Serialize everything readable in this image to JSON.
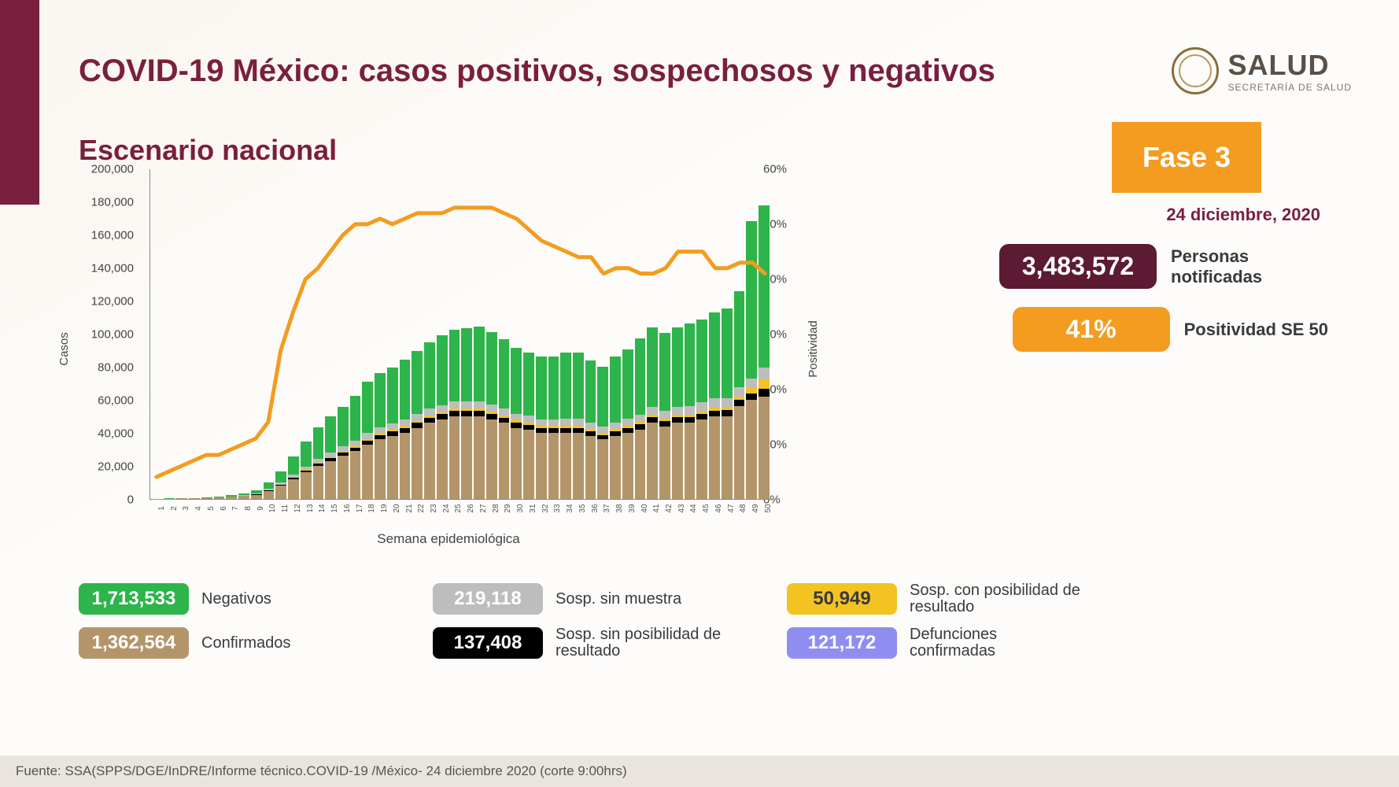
{
  "header": {
    "title": "COVID-19 México: casos positivos, sospechosos y negativos",
    "logo_main": "SALUD",
    "logo_sub": "SECRETARÍA DE SALUD"
  },
  "subtitle": "Escenario nacional",
  "phase": {
    "label": "Fase 3",
    "date": "24 diciembre, 2020"
  },
  "stats": {
    "notified": {
      "value": "3,483,572",
      "label": "Personas notificadas",
      "color": "#5c1a33"
    },
    "positivity": {
      "value": "41%",
      "label": "Positividad SE 50",
      "color": "#f39c1f"
    }
  },
  "legend": [
    {
      "value": "1,713,533",
      "label": "Negativos",
      "bg": "#2db44a",
      "fg": "#ffffff"
    },
    {
      "value": "219,118",
      "label": "Sosp. sin muestra",
      "bg": "#bdbdbd",
      "fg": "#ffffff"
    },
    {
      "value": "50,949",
      "label": "Sosp. con posibilidad de resultado",
      "bg": "#f3c321",
      "fg": "#3a3a3a"
    },
    {
      "value": "1,362,564",
      "label": "Confirmados",
      "bg": "#b4956a",
      "fg": "#ffffff"
    },
    {
      "value": "137,408",
      "label": "Sosp. sin posibilidad de resultado",
      "bg": "#000000",
      "fg": "#ffffff"
    },
    {
      "value": "121,172",
      "label": "Defunciones confirmadas",
      "bg": "#8f8ef0",
      "fg": "#ffffff"
    }
  ],
  "footer": "Fuente: SSA(SPPS/DGE/InDRE/Informe técnico.COVID-19 /México- 24 diciembre 2020 (corte 9:00hrs)",
  "chart": {
    "type": "stacked-bar + line",
    "x_label": "Semana epidemiológica",
    "y_left_label": "Casos",
    "y_right_label": "Positividad",
    "y_left": {
      "min": 0,
      "max": 200000,
      "step": 20000
    },
    "y_right": {
      "min": 0,
      "max": 60,
      "step": 10,
      "suffix": "%"
    },
    "line_color": "#f39c1f",
    "line_width": 5,
    "stack_colors": {
      "confirmados": "#b4956a",
      "sosp_sin_pos": "#000000",
      "sosp_con_pos": "#f3c321",
      "sosp_sin_muestra": "#bdbdbd",
      "negativos": "#2db44a"
    },
    "weeks": [
      1,
      2,
      3,
      4,
      5,
      6,
      7,
      8,
      9,
      10,
      11,
      12,
      13,
      14,
      15,
      16,
      17,
      18,
      19,
      20,
      21,
      22,
      23,
      24,
      25,
      26,
      27,
      28,
      29,
      30,
      31,
      32,
      33,
      34,
      35,
      36,
      37,
      38,
      39,
      40,
      41,
      42,
      43,
      44,
      45,
      46,
      47,
      48,
      49,
      50
    ],
    "stacks": [
      [
        100,
        0,
        0,
        0,
        100
      ],
      [
        200,
        0,
        0,
        0,
        200
      ],
      [
        300,
        0,
        0,
        0,
        300
      ],
      [
        400,
        0,
        0,
        0,
        300
      ],
      [
        500,
        0,
        0,
        0,
        400
      ],
      [
        900,
        0,
        0,
        100,
        500
      ],
      [
        1200,
        0,
        0,
        200,
        800
      ],
      [
        1800,
        100,
        0,
        300,
        1200
      ],
      [
        2500,
        200,
        50,
        500,
        2000
      ],
      [
        5000,
        300,
        100,
        800,
        4000
      ],
      [
        8000,
        500,
        200,
        1200,
        7000
      ],
      [
        12000,
        800,
        300,
        1600,
        11000
      ],
      [
        16000,
        1200,
        400,
        2000,
        15000
      ],
      [
        20000,
        1500,
        500,
        2500,
        19000
      ],
      [
        23000,
        1800,
        600,
        2800,
        22000
      ],
      [
        26000,
        2000,
        700,
        3000,
        24000
      ],
      [
        29000,
        2200,
        800,
        3200,
        27000
      ],
      [
        33000,
        2400,
        900,
        3500,
        31000
      ],
      [
        36000,
        2600,
        1000,
        3700,
        33000
      ],
      [
        38000,
        2800,
        1100,
        3800,
        34000
      ],
      [
        40000,
        3000,
        1200,
        4000,
        36000
      ],
      [
        43000,
        3100,
        1200,
        4100,
        38000
      ],
      [
        46000,
        3200,
        1300,
        4200,
        40000
      ],
      [
        48000,
        3300,
        1300,
        4300,
        42000
      ],
      [
        50000,
        3400,
        1400,
        4400,
        43000
      ],
      [
        50000,
        3400,
        1400,
        4400,
        44000
      ],
      [
        50000,
        3400,
        1400,
        4400,
        45000
      ],
      [
        48000,
        3300,
        1400,
        4300,
        44000
      ],
      [
        46000,
        3200,
        1400,
        4300,
        42000
      ],
      [
        43000,
        3100,
        1300,
        4200,
        40000
      ],
      [
        42000,
        3000,
        1300,
        4100,
        38000
      ],
      [
        40000,
        2900,
        1300,
        4000,
        38000
      ],
      [
        40000,
        2900,
        1300,
        4000,
        38000
      ],
      [
        40000,
        3000,
        1300,
        4100,
        40000
      ],
      [
        40000,
        3000,
        1300,
        4100,
        40000
      ],
      [
        38000,
        2800,
        1200,
        4000,
        38000
      ],
      [
        36000,
        2700,
        1200,
        3900,
        36000
      ],
      [
        38000,
        2900,
        1300,
        4100,
        40000
      ],
      [
        40000,
        3000,
        1400,
        4300,
        42000
      ],
      [
        42000,
        3100,
        1500,
        4500,
        46000
      ],
      [
        46000,
        3300,
        1600,
        4800,
        48000
      ],
      [
        44000,
        3200,
        1600,
        4700,
        47000
      ],
      [
        46000,
        3300,
        1700,
        4900,
        48000
      ],
      [
        46000,
        3300,
        1700,
        5000,
        50000
      ],
      [
        48000,
        3400,
        1800,
        5200,
        50000
      ],
      [
        50000,
        3500,
        1900,
        5400,
        52000
      ],
      [
        50000,
        3600,
        2000,
        5600,
        54000
      ],
      [
        56000,
        3800,
        2200,
        5800,
        58000
      ],
      [
        60000,
        4000,
        3000,
        6000,
        95000
      ],
      [
        62000,
        4500,
        6000,
        7000,
        98000
      ]
    ],
    "positivity": [
      4,
      5,
      6,
      7,
      8,
      8,
      9,
      10,
      11,
      14,
      27,
      34,
      40,
      42,
      45,
      48,
      50,
      50,
      51,
      50,
      51,
      52,
      52,
      52,
      53,
      53,
      53,
      53,
      52,
      51,
      49,
      47,
      46,
      45,
      44,
      44,
      41,
      42,
      42,
      41,
      41,
      42,
      45,
      45,
      45,
      42,
      42,
      43,
      43,
      41
    ]
  }
}
